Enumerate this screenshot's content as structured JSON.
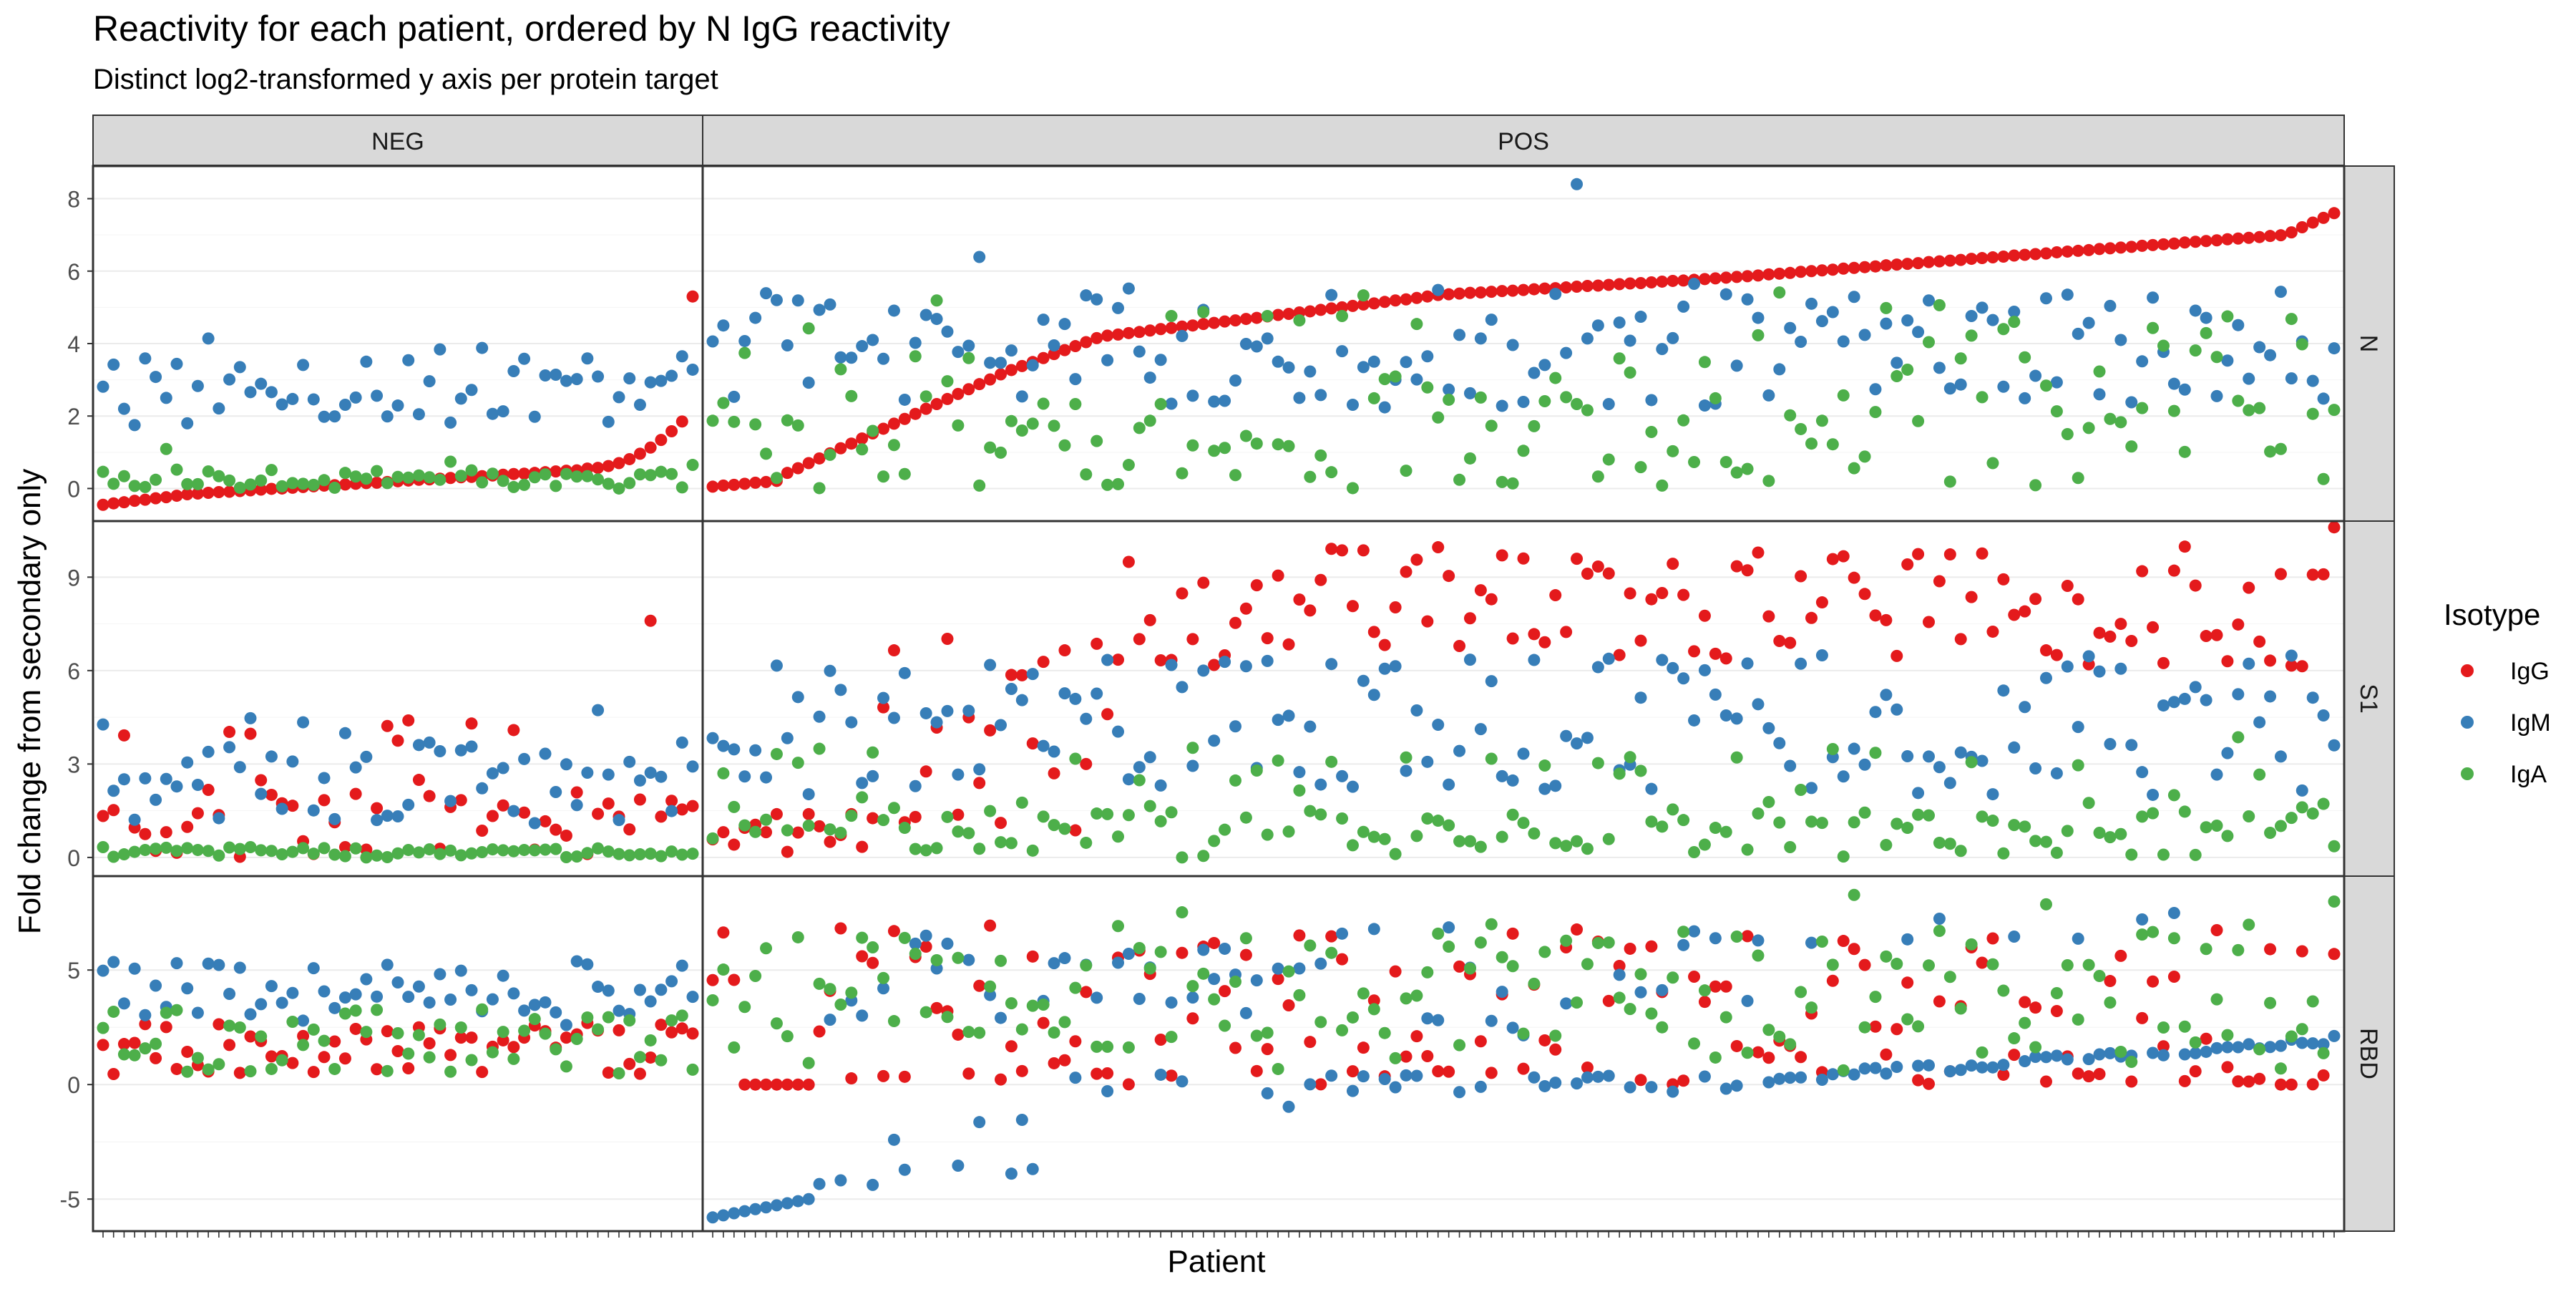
{
  "chart_data": {
    "type": "scatter",
    "title": "Reactivity for each patient, ordered by N IgG reactivity",
    "subtitle": "Distinct log2-transformed y axis per protein target",
    "xlabel": "Patient",
    "ylabel": "Fold change from secondary only",
    "legend": {
      "title": "Isotype",
      "position": "right"
    },
    "columns": [
      {
        "name": "NEG",
        "n_patients": 57
      },
      {
        "name": "POS",
        "n_patients": 153
      }
    ],
    "rows": [
      {
        "name": "N",
        "ylim": [
          -0.9,
          8.9
        ],
        "yticks": [
          "0",
          "2",
          "4",
          "6",
          "8"
        ]
      },
      {
        "name": "S1",
        "ylim": [
          -0.6,
          10.8
        ],
        "yticks": [
          "0",
          "3",
          "6",
          "9"
        ]
      },
      {
        "name": "RBD",
        "ylim": [
          -6.4,
          9.1
        ],
        "yticks": [
          "-5",
          "0",
          "5"
        ]
      }
    ],
    "series": [
      {
        "name": "IgG",
        "color": "#e41a1c"
      },
      {
        "name": "IgM",
        "color": "#377eb8"
      },
      {
        "name": "IgA",
        "color": "#4daf4a"
      }
    ],
    "grid": true,
    "note": "Per-patient values are listed in series_points below (one value per patient, left to right within each column panel)."
  },
  "series_points": {}
}
